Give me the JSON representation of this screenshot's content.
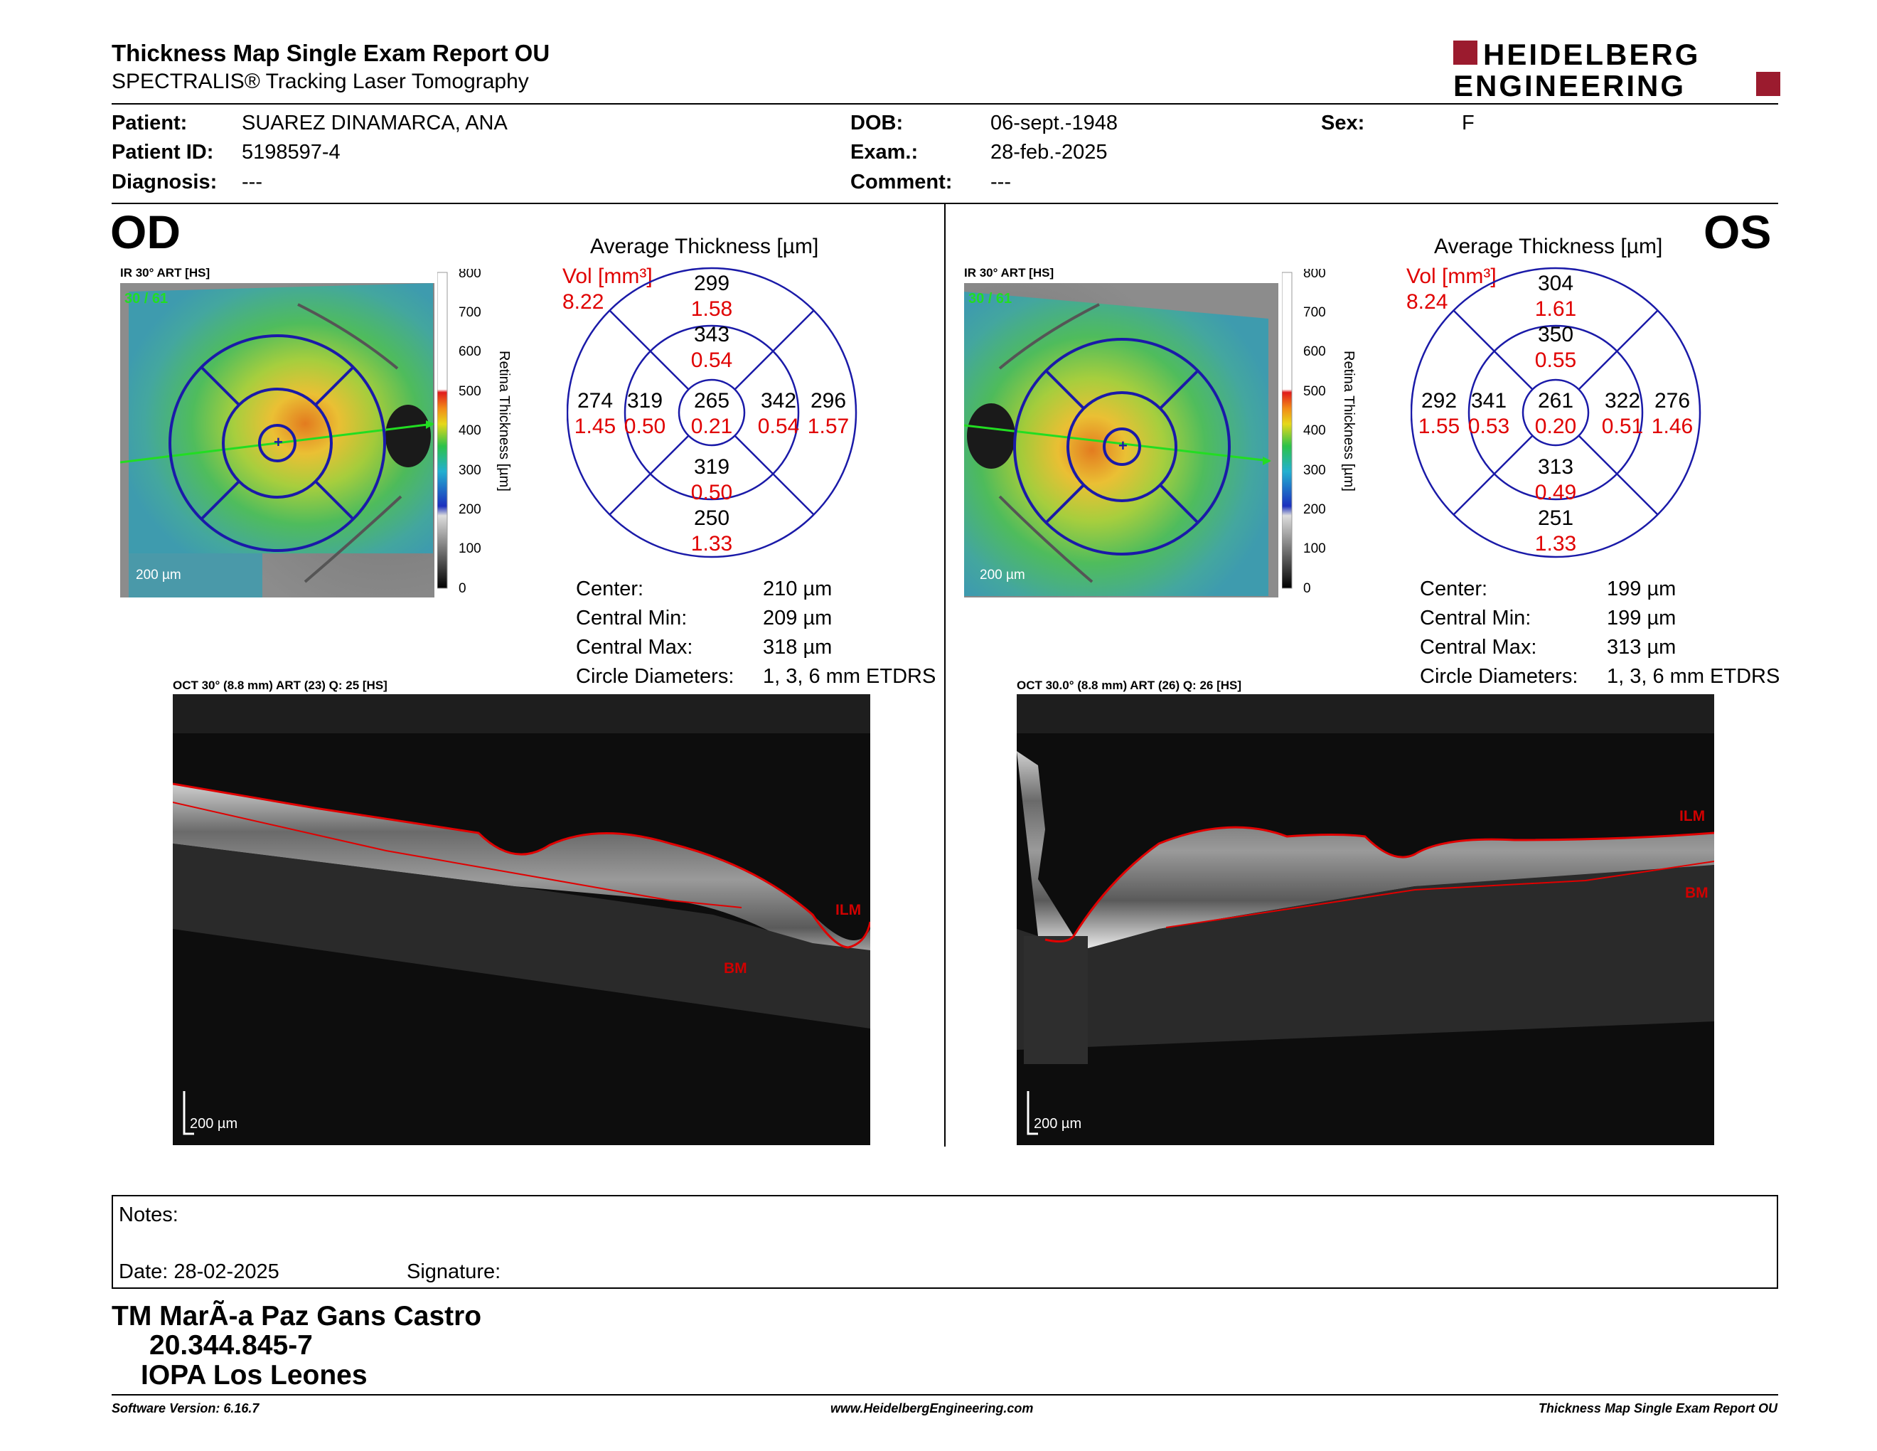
{
  "header": {
    "title": "Thickness Map Single Exam Report OU",
    "subtitle": "SPECTRALIS® Tracking Laser Tomography",
    "logo_line1": "HEIDELBERG",
    "logo_line2": "ENGINEERING"
  },
  "patient": {
    "patient_label": "Patient:",
    "patient_value": "SUAREZ DINAMARCA, ANA",
    "id_label": "Patient ID:",
    "id_value": "5198597-4",
    "diag_label": "Diagnosis:",
    "diag_value": "---",
    "dob_label": "DOB:",
    "dob_value": "06-sept.-1948",
    "exam_label": "Exam.:",
    "exam_value": "28-feb.-2025",
    "comment_label": "Comment:",
    "comment_value": "---",
    "sex_label": "Sex:",
    "sex_value": "F"
  },
  "od": {
    "eye": "OD",
    "ir_label": "IR 30° ART [HS]",
    "ir_counter": "30 / 61",
    "scale_bar": "200 µm",
    "colorbar_ticks": [
      "800",
      "700",
      "600",
      "500",
      "400",
      "300",
      "200",
      "100",
      "0"
    ],
    "colorbar_label": "Retina  Thickness [µm]",
    "avg_title": "Average Thickness [µm]",
    "vol_label": "Vol [mm³]",
    "vol_total": "8.22",
    "etdrs": {
      "top_outer": [
        "299",
        "1.58"
      ],
      "top_inner": [
        "343",
        "0.54"
      ],
      "left_outer": [
        "274",
        "1.45"
      ],
      "left_inner": [
        "319",
        "0.50"
      ],
      "center": [
        "265",
        "0.21"
      ],
      "right_inner": [
        "342",
        "0.54"
      ],
      "right_outer": [
        "296",
        "1.57"
      ],
      "bottom_inner": [
        "319",
        "0.50"
      ],
      "bottom_outer": [
        "250",
        "1.33"
      ]
    },
    "stats": [
      {
        "label": "Center:",
        "value": "210 µm"
      },
      {
        "label": "Central Min:",
        "value": "209 µm"
      },
      {
        "label": "Central Max:",
        "value": "318 µm"
      },
      {
        "label": "Circle Diameters:",
        "value": "1, 3, 6 mm ETDRS"
      }
    ],
    "oct_label": "OCT 30° (8.8 mm) ART (23) Q: 25 [HS]",
    "ilm": "ILM",
    "bm": "BM",
    "oct_scale": "200 µm"
  },
  "os": {
    "eye": "OS",
    "ir_label": "IR 30° ART [HS]",
    "ir_counter": "30 / 61",
    "scale_bar": "200 µm",
    "colorbar_ticks": [
      "800",
      "700",
      "600",
      "500",
      "400",
      "300",
      "200",
      "100",
      "0"
    ],
    "colorbar_label": "Retina  Thickness [µm]",
    "avg_title": "Average Thickness [µm]",
    "vol_label": "Vol [mm³]",
    "vol_total": "8.24",
    "etdrs": {
      "top_outer": [
        "304",
        "1.61"
      ],
      "top_inner": [
        "350",
        "0.55"
      ],
      "left_outer": [
        "292",
        "1.55"
      ],
      "left_inner": [
        "341",
        "0.53"
      ],
      "center": [
        "261",
        "0.20"
      ],
      "right_inner": [
        "322",
        "0.51"
      ],
      "right_outer": [
        "276",
        "1.46"
      ],
      "bottom_inner": [
        "313",
        "0.49"
      ],
      "bottom_outer": [
        "251",
        "1.33"
      ]
    },
    "stats": [
      {
        "label": "Center:",
        "value": "199 µm"
      },
      {
        "label": "Central Min:",
        "value": "199 µm"
      },
      {
        "label": "Central Max:",
        "value": "313 µm"
      },
      {
        "label": "Circle Diameters:",
        "value": "1, 3, 6 mm ETDRS"
      }
    ],
    "oct_label": "OCT 30.0° (8.8 mm) ART (26) Q: 26 [HS]",
    "ilm": "ILM",
    "bm": "BM",
    "oct_scale": "200 µm"
  },
  "notes": {
    "notes_label": "Notes:",
    "date_label": "Date: 28-02-2025",
    "signature_label": "Signature:"
  },
  "signature": {
    "name": "TM MarÃ-a Paz Gans Castro",
    "rut": "20.344.845-7",
    "place": "IOPA Los Leones"
  },
  "footer": {
    "left": "Software Version: 6.16.7",
    "center": "www.HeidelbergEngineering.com",
    "right": "Thickness Map Single Exam Report OU"
  },
  "colors": {
    "logo_red": "#9b1b2e",
    "grid_blue": "#1a1aa8",
    "value_red": "#e00000"
  }
}
